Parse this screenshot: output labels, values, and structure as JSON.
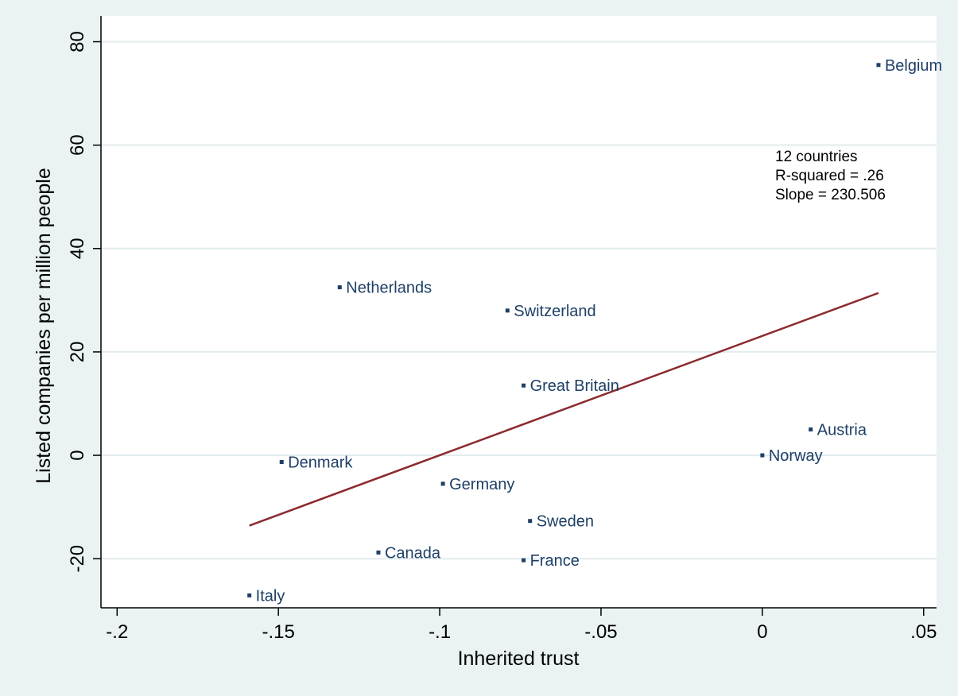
{
  "chart_data": {
    "type": "scatter",
    "title": "",
    "xlabel": "Inherited trust",
    "ylabel": "Listed companies per million people",
    "xlim": [
      -0.205,
      0.054
    ],
    "ylim": [
      -29.5,
      85
    ],
    "xticks": [
      -0.2,
      -0.15,
      -0.1,
      -0.05,
      0,
      0.05
    ],
    "xtick_labels": [
      "-.2",
      "-.15",
      "-.1",
      "-.05",
      "0",
      ".05"
    ],
    "yticks": [
      -20,
      0,
      20,
      40,
      60,
      80
    ],
    "ytick_labels": [
      "-20",
      "0",
      "20",
      "40",
      "60",
      "80"
    ],
    "grid": "horizontal",
    "legend": "none",
    "colors": {
      "point": "#1e3f66",
      "label": "#1e3f66",
      "fit_line": "#8b2a2e",
      "plot_bg": "#ffffff",
      "outer_bg": "#eaf2f3",
      "grid": "#e2ecee"
    },
    "points": [
      {
        "label": "Belgium",
        "x": 0.036,
        "y": 75.5
      },
      {
        "label": "Netherlands",
        "x": -0.131,
        "y": 32.5
      },
      {
        "label": "Switzerland",
        "x": -0.079,
        "y": 28.0
      },
      {
        "label": "Great Britain",
        "x": -0.074,
        "y": 13.5
      },
      {
        "label": "Austria",
        "x": 0.015,
        "y": 5.0
      },
      {
        "label": "Norway",
        "x": 0.0,
        "y": 0.0
      },
      {
        "label": "Denmark",
        "x": -0.149,
        "y": -1.3
      },
      {
        "label": "Germany",
        "x": -0.099,
        "y": -5.5
      },
      {
        "label": "Sweden",
        "x": -0.072,
        "y": -12.7
      },
      {
        "label": "Canada",
        "x": -0.119,
        "y": -18.8
      },
      {
        "label": "France",
        "x": -0.074,
        "y": -20.3
      },
      {
        "label": "Italy",
        "x": -0.159,
        "y": -27.1
      }
    ],
    "fit_line": {
      "x": [
        -0.159,
        0.036
      ],
      "y": [
        -13.6,
        31.4
      ]
    },
    "annotation": [
      "12 countries",
      "R-squared = .26",
      "Slope = 230.506"
    ]
  }
}
